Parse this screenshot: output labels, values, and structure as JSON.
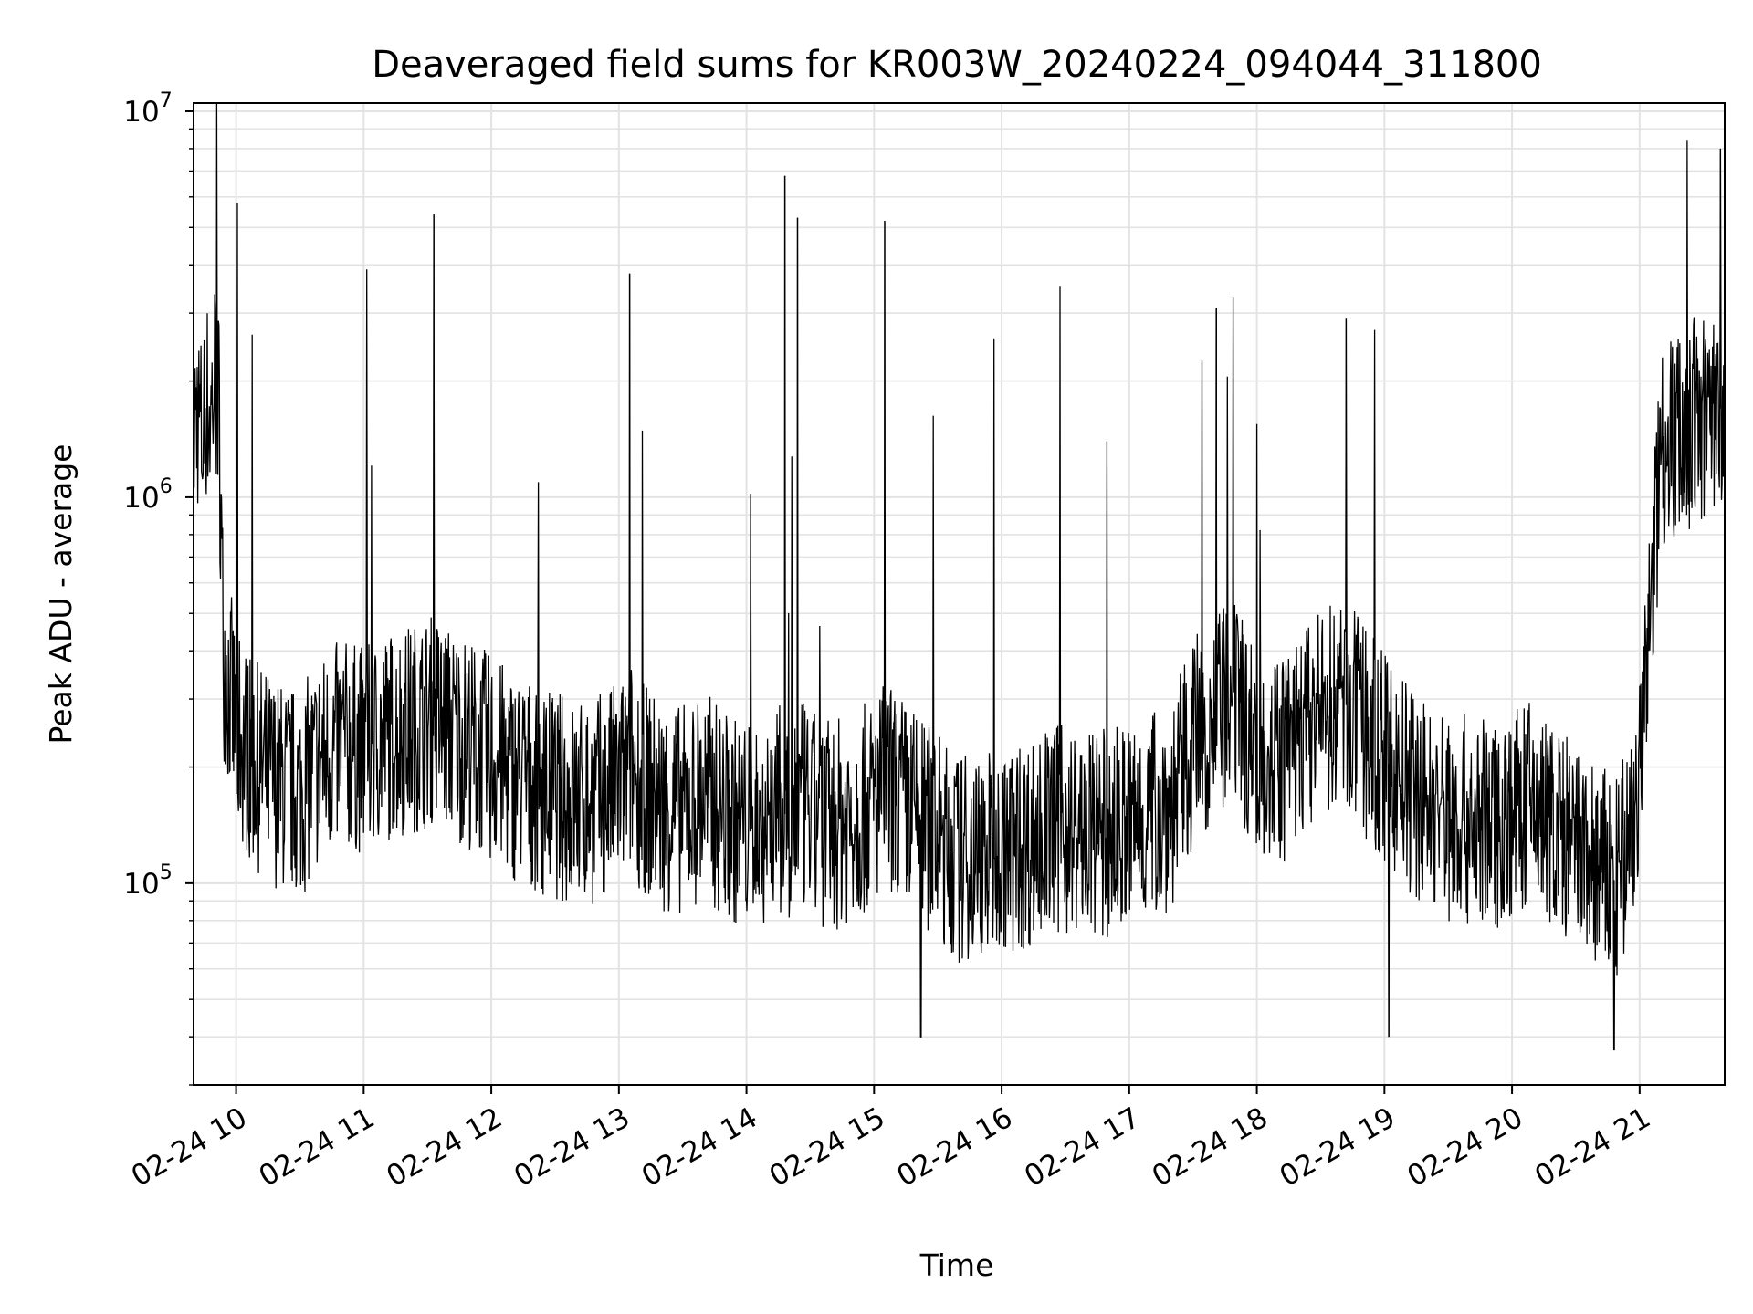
{
  "chart_data": {
    "type": "line",
    "title": "Deaveraged field sums for KR003W_20240224_094044_311800",
    "xlabel": "Time",
    "ylabel": "Peak ADU - average",
    "yscale": "log",
    "ylim": [
      30000,
      10500000
    ],
    "xlim": [
      "2024-02-24 09:40",
      "2024-02-24 21:40"
    ],
    "grid": true,
    "y_ticks": [
      {
        "base": "10",
        "exp": "5",
        "value": 100000
      },
      {
        "base": "10",
        "exp": "6",
        "value": 1000000
      },
      {
        "base": "10",
        "exp": "7",
        "value": 10000000
      }
    ],
    "x_ticks": [
      {
        "label": "02-24 10",
        "value": "2024-02-24 10:00"
      },
      {
        "label": "02-24 11",
        "value": "2024-02-24 11:00"
      },
      {
        "label": "02-24 12",
        "value": "2024-02-24 12:00"
      },
      {
        "label": "02-24 13",
        "value": "2024-02-24 13:00"
      },
      {
        "label": "02-24 14",
        "value": "2024-02-24 14:00"
      },
      {
        "label": "02-24 15",
        "value": "2024-02-24 15:00"
      },
      {
        "label": "02-24 16",
        "value": "2024-02-24 16:00"
      },
      {
        "label": "02-24 17",
        "value": "2024-02-24 17:00"
      },
      {
        "label": "02-24 18",
        "value": "2024-02-24 18:00"
      },
      {
        "label": "02-24 19",
        "value": "2024-02-24 19:00"
      },
      {
        "label": "02-24 20",
        "value": "2024-02-24 20:00"
      },
      {
        "label": "02-24 21",
        "value": "2024-02-24 21:00"
      }
    ],
    "series": [
      {
        "color": "#000000",
        "x": [
          "2024-02-24 09:40",
          "2024-02-24 09:42",
          "2024-02-24 09:44",
          "2024-02-24 09:46",
          "2024-02-24 09:48",
          "2024-02-24 09:50",
          "2024-02-24 09:52",
          "2024-02-24 09:54",
          "2024-02-24 10:00",
          "2024-02-24 10:10",
          "2024-02-24 10:20",
          "2024-02-24 10:30",
          "2024-02-24 10:40",
          "2024-02-24 10:50",
          "2024-02-24 11:00",
          "2024-02-24 11:10",
          "2024-02-24 11:20",
          "2024-02-24 11:30",
          "2024-02-24 11:33",
          "2024-02-24 11:40",
          "2024-02-24 11:50",
          "2024-02-24 12:00",
          "2024-02-24 12:10",
          "2024-02-24 12:20",
          "2024-02-24 12:30",
          "2024-02-24 12:40",
          "2024-02-24 12:50",
          "2024-02-24 13:00",
          "2024-02-24 13:03",
          "2024-02-24 13:06",
          "2024-02-24 13:10",
          "2024-02-24 13:20",
          "2024-02-24 13:30",
          "2024-02-24 13:40",
          "2024-02-24 13:50",
          "2024-02-24 14:00",
          "2024-02-24 14:10",
          "2024-02-24 14:15",
          "2024-02-24 14:19",
          "2024-02-24 14:25",
          "2024-02-24 14:30",
          "2024-02-24 14:40",
          "2024-02-24 14:50",
          "2024-02-24 15:00",
          "2024-02-24 15:05",
          "2024-02-24 15:10",
          "2024-02-24 15:20",
          "2024-02-24 15:30",
          "2024-02-24 15:40",
          "2024-02-24 15:50",
          "2024-02-24 16:00",
          "2024-02-24 16:10",
          "2024-02-24 16:20",
          "2024-02-24 16:30",
          "2024-02-24 16:40",
          "2024-02-24 16:50",
          "2024-02-24 17:00",
          "2024-02-24 17:10",
          "2024-02-24 17:20",
          "2024-02-24 17:30",
          "2024-02-24 17:40",
          "2024-02-24 17:50",
          "2024-02-24 18:00",
          "2024-02-24 18:10",
          "2024-02-24 18:20",
          "2024-02-24 18:30",
          "2024-02-24 18:40",
          "2024-02-24 18:50",
          "2024-02-24 19:00",
          "2024-02-24 19:10",
          "2024-02-24 19:20",
          "2024-02-24 19:30",
          "2024-02-24 19:40",
          "2024-02-24 19:50",
          "2024-02-24 20:00",
          "2024-02-24 20:10",
          "2024-02-24 20:20",
          "2024-02-24 20:30",
          "2024-02-24 20:40",
          "2024-02-24 20:50",
          "2024-02-24 21:00",
          "2024-02-24 21:10",
          "2024-02-24 21:20",
          "2024-02-24 21:30",
          "2024-02-24 21:38"
        ],
        "y": [
          1500000,
          1700000,
          1400000,
          1800000,
          1600000,
          2100000,
          1700000,
          400000,
          250000,
          200000,
          180000,
          170000,
          210000,
          230000,
          220000,
          240000,
          250000,
          260000,
          270000,
          250000,
          230000,
          210000,
          190000,
          180000,
          170000,
          160000,
          165000,
          180000,
          190000,
          200000,
          180000,
          160000,
          155000,
          170000,
          150000,
          140000,
          150000,
          155000,
          150000,
          160000,
          150000,
          140000,
          150000,
          160000,
          180000,
          170000,
          150000,
          130000,
          115000,
          120000,
          118000,
          125000,
          135000,
          140000,
          130000,
          135000,
          140000,
          150000,
          160000,
          230000,
          270000,
          280000,
          230000,
          200000,
          240000,
          270000,
          300000,
          250000,
          210000,
          180000,
          160000,
          150000,
          145000,
          140000,
          150000,
          160000,
          140000,
          120000,
          110000,
          100000,
          180000,
          1400000,
          1500000,
          1600000,
          1700000
        ],
        "spikes": [
          {
            "x": "2024-02-24 11:33",
            "y": 5400000
          },
          {
            "x": "2024-02-24 13:05",
            "y": 3800000
          },
          {
            "x": "2024-02-24 14:18",
            "y": 6800000
          },
          {
            "x": "2024-02-24 14:24",
            "y": 5300000
          },
          {
            "x": "2024-02-24 15:05",
            "y": 5200000
          },
          {
            "x": "2024-02-24 17:41",
            "y": 3100000
          },
          {
            "x": "2024-02-24 18:42",
            "y": 2900000
          },
          {
            "x": "2024-02-24 21:38",
            "y": 8000000
          }
        ],
        "dips": [
          {
            "x": "2024-02-24 15:22",
            "y": 40000
          },
          {
            "x": "2024-02-24 19:02",
            "y": 40000
          },
          {
            "x": "2024-02-24 20:48",
            "y": 37000
          }
        ]
      }
    ]
  }
}
